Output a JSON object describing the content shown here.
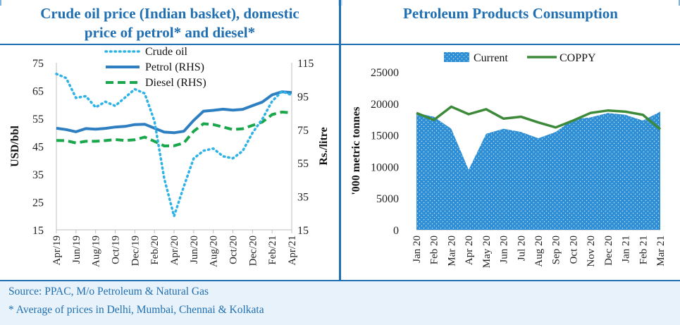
{
  "left_title_line1": "Crude oil price (Indian basket), domestic",
  "left_title_line2": "price of petrol* and diesel*",
  "right_title": "Petroleum Products Consumption",
  "footer": {
    "source": "Source: PPAC, M/o Petroleum & Natural Gas",
    "note": "* Average of prices in Delhi, Mumbai, Chennai & Kolkata"
  },
  "colors": {
    "accent": "#1f6fb2",
    "crude": "#2fb3e6",
    "petrol": "#2e7fc2",
    "diesel": "#1aa64a",
    "current_fill": "#2f8fd6",
    "coppy": "#3d8a3a",
    "footer_bg": "#e8f2fa"
  },
  "chart_data": [
    {
      "type": "line",
      "title": "Crude oil price (Indian basket), domestic price of petrol* and diesel*",
      "x": [
        "Apr/19",
        "May/19",
        "Jun/19",
        "Jul/19",
        "Aug/19",
        "Sep/19",
        "Oct/19",
        "Nov/19",
        "Dec/19",
        "Jan/20",
        "Feb/20",
        "Mar/20",
        "Apr/20",
        "May/20",
        "Jun/20",
        "Jul/20",
        "Aug/20",
        "Sep/20",
        "Oct/20",
        "Nov/20",
        "Dec/20",
        "Jan/21",
        "Feb/21",
        "Mar/21",
        "Apr/21"
      ],
      "x_tick_labels": [
        "Apr/19",
        "Jun/19",
        "Aug/19",
        "Oct/19",
        "Dec/19",
        "Feb/20",
        "Apr/20",
        "Jun/20",
        "Aug/20",
        "Oct/20",
        "Dec/20",
        "Feb/21",
        "Apr/21"
      ],
      "ylabel": "USD/bbl",
      "ylim": [
        15,
        75
      ],
      "yticks": [
        15,
        25,
        35,
        45,
        55,
        65,
        75
      ],
      "y2label": "Rs./litre",
      "y2lim": [
        15,
        115
      ],
      "y2ticks": [
        15,
        35,
        55,
        75,
        95,
        115
      ],
      "legend": "top-left",
      "series": [
        {
          "name": "Crude oil",
          "axis": "left",
          "style": "dotted",
          "values": [
            71.0,
            69.5,
            62.4,
            63.0,
            59.0,
            61.0,
            59.5,
            62.5,
            65.5,
            64.0,
            54.0,
            33.4,
            19.9,
            30.6,
            40.6,
            43.4,
            44.2,
            41.4,
            40.7,
            43.3,
            49.8,
            54.8,
            61.2,
            64.7,
            63.4
          ]
        },
        {
          "name": "Petrol (RHS)",
          "axis": "right",
          "style": "solid",
          "values": [
            75.8,
            75.0,
            73.7,
            75.6,
            75.2,
            75.7,
            76.5,
            76.9,
            78.0,
            78.2,
            75.8,
            73.5,
            73.1,
            74.0,
            80.5,
            86.0,
            86.5,
            87.2,
            86.6,
            87.1,
            89.3,
            91.5,
            95.8,
            97.6,
            97.2
          ]
        },
        {
          "name": "Diesel (RHS)",
          "axis": "right",
          "style": "dashed",
          "values": [
            68.5,
            68.4,
            67.0,
            68.0,
            68.0,
            68.4,
            69.0,
            68.5,
            68.9,
            70.5,
            68.0,
            65.2,
            65.3,
            67.0,
            74.0,
            78.5,
            78.0,
            76.5,
            75.0,
            75.5,
            77.5,
            79.5,
            84.0,
            85.5,
            85.0
          ]
        }
      ]
    },
    {
      "type": "area",
      "title": "Petroleum Products Consumption",
      "ylabel": "'000 metric tonnes",
      "ylim": [
        0,
        25000
      ],
      "yticks": [
        0,
        5000,
        10000,
        15000,
        20000,
        25000
      ],
      "categories": [
        "Jan 20",
        "Feb 20",
        "Mar 20",
        "Apr 20",
        "May 20",
        "Jun 20",
        "Jul 20",
        "Aug 20",
        "Sep 20",
        "Oct 20",
        "Nov 20",
        "Dec 20",
        "Jan 21",
        "Feb 21",
        "Mar 21"
      ],
      "legend": "top",
      "series": [
        {
          "name": "Current",
          "kind": "area",
          "values": [
            18500,
            17900,
            16000,
            9500,
            15200,
            16000,
            15500,
            14500,
            15500,
            17500,
            17800,
            18500,
            18200,
            17300,
            18700
          ]
        },
        {
          "name": "COPPY",
          "kind": "line",
          "values": [
            18500,
            17400,
            19500,
            18300,
            19100,
            17600,
            17900,
            17000,
            16200,
            17300,
            18500,
            18900,
            18700,
            18200,
            15900
          ]
        }
      ]
    }
  ]
}
